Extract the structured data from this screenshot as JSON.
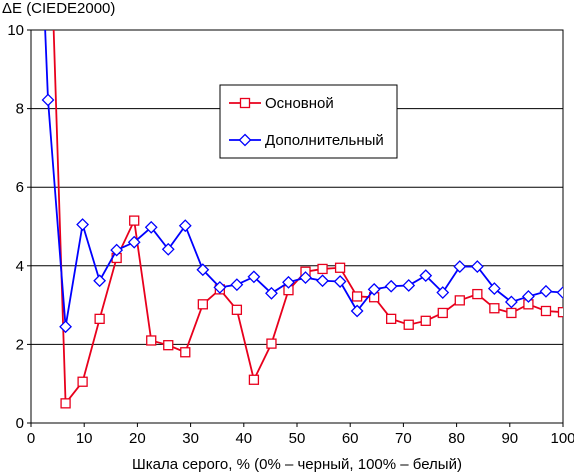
{
  "chart_data": {
    "type": "line",
    "title": "",
    "ylabel": "ΔE (CIEDE2000)",
    "xlabel": "Шкала серого, % (0% – черный, 100% – белый)",
    "xlim": [
      0,
      100
    ],
    "ylim": [
      0,
      10
    ],
    "xticks": [
      0,
      10,
      20,
      30,
      40,
      50,
      60,
      70,
      80,
      90,
      100
    ],
    "yticks": [
      0,
      2,
      4,
      6,
      8,
      10
    ],
    "grid": "horizontal",
    "legend_position": "top-right",
    "series": [
      {
        "name": "Основной",
        "color": "#e8001c",
        "marker": "square",
        "x": [
          3.2,
          6.5,
          9.7,
          12.9,
          16.1,
          19.4,
          22.6,
          25.8,
          29.0,
          32.3,
          35.5,
          38.7,
          41.9,
          45.2,
          48.4,
          51.6,
          54.8,
          58.1,
          61.3,
          64.5,
          67.7,
          71.0,
          74.2,
          77.4,
          80.6,
          83.9,
          87.1,
          90.3,
          93.5,
          96.8,
          100
        ],
        "y": [
          14.5,
          0.5,
          1.05,
          2.65,
          4.2,
          5.15,
          2.1,
          1.98,
          1.8,
          3.02,
          3.4,
          2.88,
          1.1,
          2.02,
          3.38,
          3.85,
          3.92,
          3.95,
          3.22,
          3.2,
          2.65,
          2.5,
          2.6,
          2.8,
          3.12,
          3.28,
          2.92,
          2.8,
          3.02,
          2.85,
          2.82
        ]
      },
      {
        "name": "Дополнительный",
        "color": "#0000ff",
        "marker": "diamond",
        "x": [
          1.3,
          3.2,
          6.5,
          9.7,
          12.9,
          16.1,
          19.4,
          22.6,
          25.8,
          29.0,
          32.3,
          35.5,
          38.7,
          41.9,
          45.2,
          48.4,
          51.6,
          54.8,
          58.1,
          61.3,
          64.5,
          67.7,
          71.0,
          74.2,
          77.4,
          80.6,
          83.9,
          87.1,
          90.3,
          93.5,
          96.8,
          100
        ],
        "y": [
          14.5,
          8.22,
          2.45,
          5.05,
          3.62,
          4.4,
          4.6,
          4.98,
          4.42,
          5.02,
          3.9,
          3.45,
          3.52,
          3.72,
          3.3,
          3.58,
          3.7,
          3.62,
          3.6,
          2.85,
          3.4,
          3.48,
          3.5,
          3.75,
          3.32,
          3.98,
          3.98,
          3.42,
          3.08,
          3.22,
          3.35,
          3.32
        ]
      }
    ]
  }
}
